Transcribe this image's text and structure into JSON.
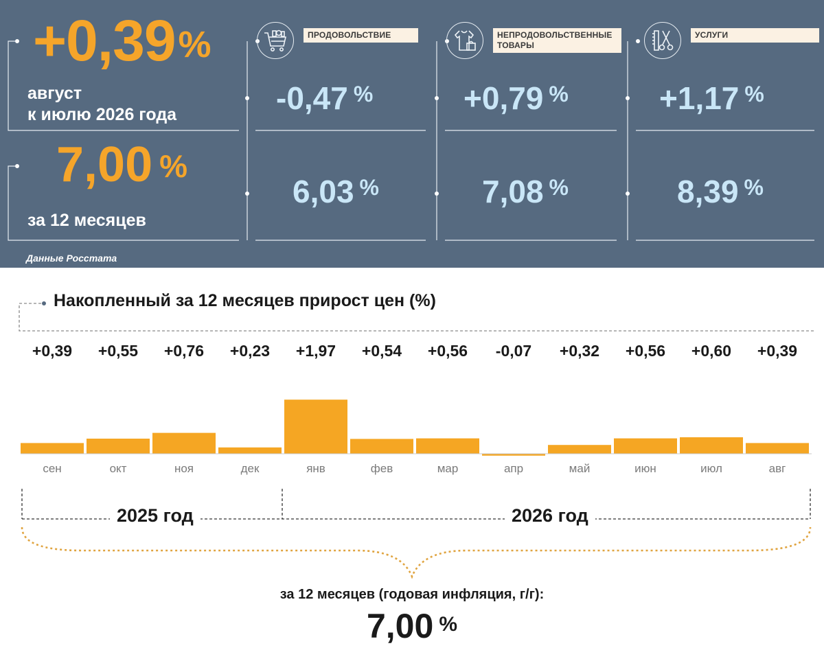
{
  "summary": {
    "monthly_value": "+0,39",
    "pct_sign": "%",
    "monthly_caption_line1": "август",
    "monthly_caption_line2": "к июлю 2026 года",
    "annual_value": "7,00",
    "annual_caption": "за 12 месяцев",
    "source": "Данные Росстата"
  },
  "categories": [
    {
      "label_line1": "ПРОДОВОЛЬСТВИЕ",
      "label_line2": "",
      "icon": "shopping-cart-icon",
      "monthly": "-0,47",
      "annual": "6,03"
    },
    {
      "label_line1": "НЕПРОДОВОЛЬСТВЕННЫЕ",
      "label_line2": "ТОВАРЫ",
      "icon": "clothing-bag-icon",
      "monthly": "+0,79",
      "annual": "7,08"
    },
    {
      "label_line1": "УСЛУГИ",
      "label_line2": "",
      "icon": "comb-scissors-icon",
      "monthly": "+1,17",
      "annual": "8,39"
    }
  ],
  "chart_data": {
    "type": "bar",
    "title": "Накопленный за 12 месяцев прирост цен (%)",
    "categories": [
      "сен",
      "окт",
      "ноя",
      "дек",
      "янв",
      "фев",
      "мар",
      "апр",
      "май",
      "июн",
      "июл",
      "авг"
    ],
    "values": [
      0.39,
      0.55,
      0.76,
      0.23,
      1.97,
      0.54,
      0.56,
      -0.07,
      0.32,
      0.56,
      0.6,
      0.39
    ],
    "value_labels": [
      "+0,39",
      "+0,55",
      "+0,76",
      "+0,23",
      "+1,97",
      "+0,54",
      "+0,56",
      "-0,07",
      "+0,32",
      "+0,56",
      "+0,60",
      "+0,39"
    ],
    "bar_color": "#f5a623",
    "years": [
      {
        "label": "2025 год",
        "months": 4
      },
      {
        "label": "2026 год",
        "months": 8
      }
    ],
    "annual_label": "за 12 месяцев (годовая инфляция, г/г):",
    "annual_value": "7,00",
    "annual_pct": "%"
  },
  "colors": {
    "panel": "#566a80",
    "accent": "#f5a52a",
    "value_blue": "#c9e6f7"
  }
}
